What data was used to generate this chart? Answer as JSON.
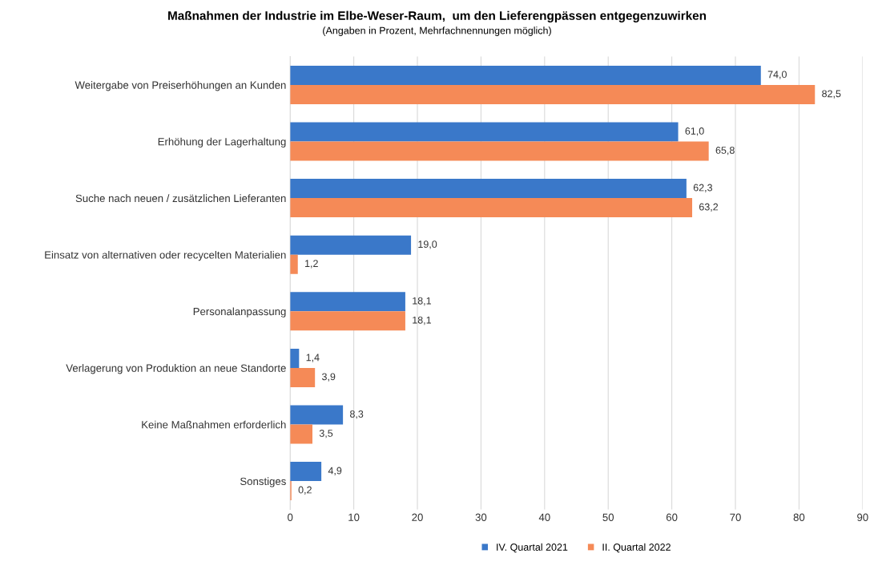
{
  "chart_data": {
    "type": "bar",
    "orientation": "horizontal",
    "title": "Maßnahmen der Industrie im Elbe-Weser-Raum,  um den Lieferengpässen entgegenzuwirken",
    "subtitle": "(Angaben in Prozent, Mehrfachnennungen möglich)",
    "categories": [
      "Weitergabe von Preiserhöhungen an Kunden",
      "Erhöhung der Lagerhaltung",
      "Suche nach neuen / zusätzlichen Lieferanten",
      "Einsatz von alternativen oder recycelten Materialien",
      "Personalanpassung",
      "Verlagerung von Produktion an neue Standorte",
      "Keine Maßnahmen erforderlich",
      "Sonstiges"
    ],
    "series": [
      {
        "name": "IV. Quartal 2021",
        "color": "#3a78c9",
        "values": [
          74.0,
          61.0,
          62.3,
          19.0,
          18.1,
          1.4,
          8.3,
          4.9
        ],
        "value_labels": [
          "74,0",
          "61,0",
          "62,3",
          "19,0",
          "18,1",
          "1,4",
          "8,3",
          "4,9"
        ]
      },
      {
        "name": "II. Quartal 2022",
        "color": "#f58a57",
        "values": [
          82.5,
          65.8,
          63.2,
          1.2,
          18.1,
          3.9,
          3.5,
          0.2
        ],
        "value_labels": [
          "82,5",
          "65,8",
          "63,2",
          "1,2",
          "18,1",
          "3,9",
          "3,5",
          "0,2"
        ]
      }
    ],
    "xlim": [
      0,
      90
    ],
    "xticks": [
      0,
      10,
      20,
      30,
      40,
      50,
      60,
      70,
      80,
      90
    ],
    "grid": "x",
    "legend": "bottom"
  }
}
